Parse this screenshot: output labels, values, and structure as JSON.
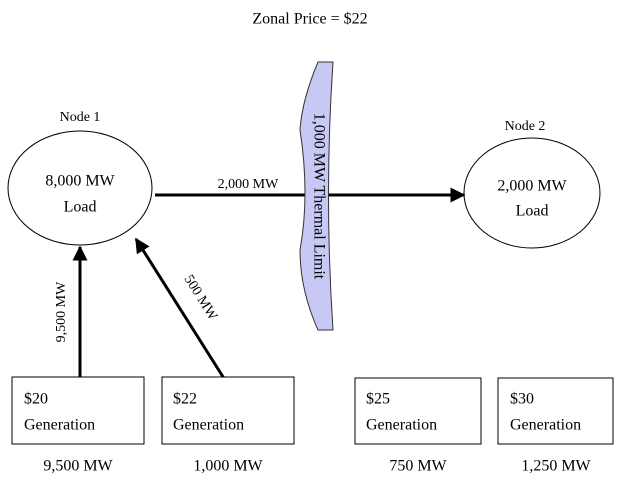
{
  "title": "Zonal Price = $22",
  "nodes": [
    {
      "name": "Node 1",
      "load": "8,000 MW",
      "kind": "Load"
    },
    {
      "name": "Node 2",
      "load": "2,000 MW",
      "kind": "Load"
    }
  ],
  "flows": [
    {
      "label": "2,000 MW"
    },
    {
      "label": "9,500 MW"
    },
    {
      "label": "500 MW"
    }
  ],
  "constraint": {
    "label": "1,000 MW Thermal Limit"
  },
  "generators": [
    {
      "price": "$20",
      "label": "Generation",
      "output": "9,500 MW"
    },
    {
      "price": "$22",
      "label": "Generation",
      "output": "1,000 MW"
    },
    {
      "price": "$25",
      "label": "Generation",
      "output": "750 MW"
    },
    {
      "price": "$30",
      "label": "Generation",
      "output": "1,250 MW"
    }
  ]
}
